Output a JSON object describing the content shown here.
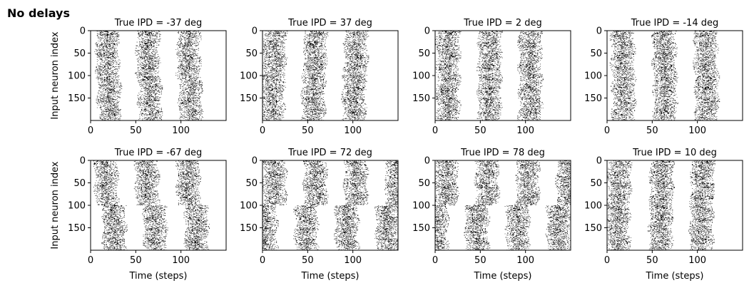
{
  "figure_title": "No delays",
  "chart_data": [
    {
      "type": "raster",
      "title": "True IPD = -37 deg",
      "ylabel": "Input neuron index",
      "xlabel": "",
      "xticks": [
        0,
        50,
        100
      ],
      "yticks": [
        0,
        50,
        100,
        150
      ],
      "xlim": [
        0,
        150
      ],
      "ylim": [
        200,
        0
      ],
      "num_neurons": 200,
      "num_steps": 150,
      "burst_centers_steps": [
        18,
        63,
        108
      ],
      "burst_half_width_steps": 13,
      "phase_shift_steps_by_half": [
        0,
        2
      ],
      "fire_density": 0.45
    },
    {
      "type": "raster",
      "title": "True IPD = 37 deg",
      "ylabel": "",
      "xlabel": "",
      "xticks": [
        0,
        50,
        100
      ],
      "yticks": [
        0,
        50,
        100,
        150
      ],
      "xlim": [
        0,
        150
      ],
      "ylim": [
        200,
        0
      ],
      "num_neurons": 200,
      "num_steps": 150,
      "burst_centers_steps": [
        13,
        58,
        103
      ],
      "burst_half_width_steps": 13,
      "phase_shift_steps_by_half": [
        0,
        -2
      ],
      "fire_density": 0.45
    },
    {
      "type": "raster",
      "title": "True IPD = 2 deg",
      "ylabel": "",
      "xlabel": "",
      "xticks": [
        0,
        50,
        100
      ],
      "yticks": [
        0,
        50,
        100,
        150
      ],
      "xlim": [
        0,
        150
      ],
      "ylim": [
        200,
        0
      ],
      "num_neurons": 200,
      "num_steps": 150,
      "burst_centers_steps": [
        14,
        60,
        105
      ],
      "burst_half_width_steps": 13,
      "phase_shift_steps_by_half": [
        0,
        0
      ],
      "fire_density": 0.45
    },
    {
      "type": "raster",
      "title": "True IPD = -14 deg",
      "ylabel": "",
      "xlabel": "",
      "xticks": [
        0,
        50,
        100
      ],
      "yticks": [
        0,
        50,
        100,
        150
      ],
      "xlim": [
        0,
        150
      ],
      "ylim": [
        200,
        0
      ],
      "num_neurons": 200,
      "num_steps": 150,
      "burst_centers_steps": [
        17,
        63,
        109
      ],
      "burst_half_width_steps": 13,
      "phase_shift_steps_by_half": [
        0,
        1
      ],
      "fire_density": 0.45
    },
    {
      "type": "raster",
      "title": "True IPD = -67 deg",
      "ylabel": "Input neuron index",
      "xlabel": "Time (steps)",
      "xticks": [
        0,
        50,
        100
      ],
      "yticks": [
        0,
        50,
        100,
        150
      ],
      "xlim": [
        0,
        150
      ],
      "ylim": [
        200,
        0
      ],
      "num_neurons": 200,
      "num_steps": 150,
      "burst_centers_steps": [
        17,
        62,
        108
      ],
      "burst_half_width_steps": 13,
      "phase_shift_steps_by_half": [
        0,
        9
      ],
      "fire_density": 0.45
    },
    {
      "type": "raster",
      "title": "True IPD = 72 deg",
      "ylabel": "",
      "xlabel": "Time (steps)",
      "xticks": [
        0,
        50,
        100
      ],
      "yticks": [
        0,
        50,
        100,
        150
      ],
      "xlim": [
        0,
        150
      ],
      "ylim": [
        200,
        0
      ],
      "num_neurons": 200,
      "num_steps": 150,
      "burst_centers_steps": [
        13,
        58,
        103,
        148
      ],
      "burst_half_width_steps": 13,
      "phase_shift_steps_by_half": [
        0,
        -10
      ],
      "fire_density": 0.45
    },
    {
      "type": "raster",
      "title": "True IPD = 78 deg",
      "ylabel": "",
      "xlabel": "Time (steps)",
      "xticks": [
        0,
        50,
        100
      ],
      "yticks": [
        0,
        50,
        100,
        150
      ],
      "xlim": [
        0,
        150
      ],
      "ylim": [
        200,
        0
      ],
      "num_neurons": 200,
      "num_steps": 150,
      "burst_centers_steps": [
        12,
        57,
        102,
        147
      ],
      "burst_half_width_steps": 13,
      "phase_shift_steps_by_half": [
        0,
        -11
      ],
      "fire_density": 0.45
    },
    {
      "type": "raster",
      "title": "True IPD = 10 deg",
      "ylabel": "",
      "xlabel": "Time (steps)",
      "xticks": [
        0,
        50,
        100
      ],
      "yticks": [
        0,
        50,
        100,
        150
      ],
      "xlim": [
        0,
        150
      ],
      "ylim": [
        200,
        0
      ],
      "num_neurons": 200,
      "num_steps": 150,
      "burst_centers_steps": [
        13,
        60,
        105
      ],
      "burst_half_width_steps": 13,
      "phase_shift_steps_by_half": [
        0,
        -1
      ],
      "fire_density": 0.45
    }
  ]
}
